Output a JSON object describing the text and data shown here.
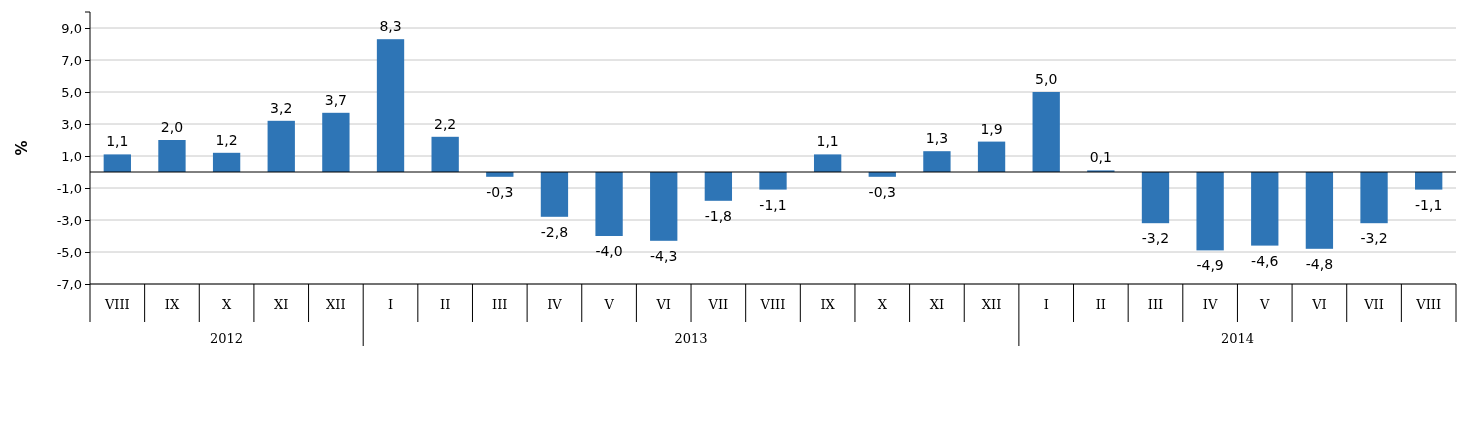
{
  "chart_data": {
    "type": "bar",
    "ylabel": "%",
    "categories": [
      "VIII",
      "IX",
      "X",
      "XI",
      "XII",
      "I",
      "II",
      "III",
      "IV",
      "V",
      "VI",
      "VII",
      "VIII",
      "IX",
      "X",
      "XI",
      "XII",
      "I",
      "II",
      "III",
      "IV",
      "V",
      "VI",
      "VII",
      "VIII"
    ],
    "values": [
      1.1,
      2.0,
      1.2,
      3.2,
      3.7,
      8.3,
      2.2,
      -0.3,
      -2.8,
      -4.0,
      -4.3,
      -1.8,
      -1.1,
      1.1,
      -0.3,
      1.3,
      1.9,
      5.0,
      0.1,
      -3.2,
      -4.9,
      -4.6,
      -4.8,
      -3.2,
      -1.1
    ],
    "value_labels": [
      "1,1",
      "2,0",
      "1,2",
      "3,2",
      "3,7",
      "8,3",
      "2,2",
      "-0,3",
      "-2,8",
      "-4,0",
      "-4,3",
      "-1,8",
      "-1,1",
      "1,1",
      "-0,3",
      "1,3",
      "1,9",
      "5,0",
      "0,1",
      "-3,2",
      "-4,9",
      "-4,6",
      "-4,8",
      "-3,2",
      "-1,1"
    ],
    "color": "#2e75b6",
    "ylim": [
      -7,
      10
    ],
    "yticks": [
      {
        "value": -7,
        "label": "-7,0"
      },
      {
        "value": -5,
        "label": "-5,0"
      },
      {
        "value": -3,
        "label": "-3,0"
      },
      {
        "value": -1,
        "label": "-1,0"
      },
      {
        "value": 1,
        "label": "1,0"
      },
      {
        "value": 3,
        "label": "3,0"
      },
      {
        "value": 5,
        "label": "5,0"
      },
      {
        "value": 7,
        "label": "7,0"
      },
      {
        "value": 9,
        "label": "9,0"
      }
    ],
    "grid": "y",
    "annotations": [
      "2012",
      "2013",
      "2014"
    ]
  }
}
